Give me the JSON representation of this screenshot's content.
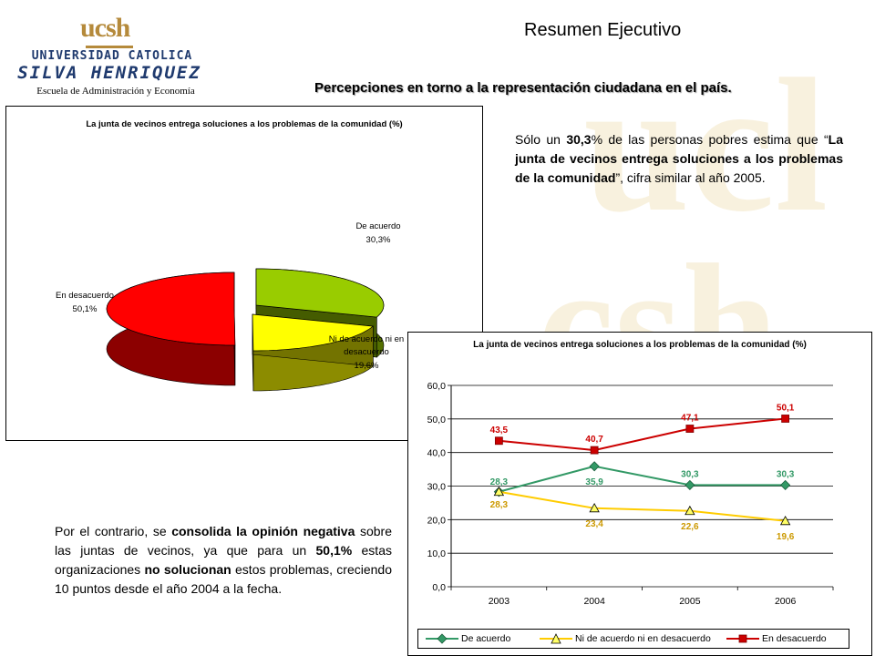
{
  "header": {
    "title": "Resumen Ejecutivo",
    "subtitle": "Percepciones en torno a la representación ciudadana en el país."
  },
  "logo": {
    "mark": "ucsh",
    "line1": "UNIVERSIDAD CATOLICA",
    "line2": "SILVA HENRIQUEZ",
    "line3": "Escuela de Administración y Economía"
  },
  "text_top": {
    "p1": "Sólo un ",
    "b1": "30,3",
    "p2": "% de las personas pobres estima que “",
    "b2": "La junta de vecinos entrega soluciones a los problemas de la comunidad",
    "p3": "”, cifra similar al año 2005."
  },
  "text_bottom": {
    "p1": "Por el contrario, se ",
    "b1": "consolida la opinión negativa",
    "p2": " sobre las juntas de vecinos, ya que para un ",
    "b2": "50,1%",
    "p3": " estas organizaciones ",
    "b3": "no solucionan",
    "p4": " estos problemas, creciendo 10 puntos desde el año 2004 a la fecha."
  },
  "chart_data": [
    {
      "type": "pie",
      "title": "La junta de vecinos entrega soluciones a los problemas de la comunidad (%)",
      "slices": [
        {
          "label": "De acuerdo",
          "value": 30.3,
          "value_label": "30,3%",
          "color": "#99cc00"
        },
        {
          "label": "Ni de acuerdo ni en desacuerdo",
          "value": 19.6,
          "value_label": "19,6%",
          "color": "#ffff00"
        },
        {
          "label": "En desacuerdo",
          "value": 50.1,
          "value_label": "50,1%",
          "color": "#ff0000"
        }
      ]
    },
    {
      "type": "line",
      "title": "La junta de vecinos entrega soluciones a los problemas de la comunidad (%)",
      "categories": [
        "2003",
        "2004",
        "2005",
        "2006"
      ],
      "ylim": [
        0,
        60
      ],
      "yticks": [
        "0,0",
        "10,0",
        "20,0",
        "30,0",
        "40,0",
        "50,0",
        "60,0"
      ],
      "grid": true,
      "legend_position": "bottom",
      "series": [
        {
          "name": "De acuerdo",
          "values": [
            28.3,
            35.9,
            30.3,
            30.3
          ],
          "labels": [
            "28,3",
            "35,9",
            "30,3",
            "30,3"
          ],
          "color": "#339966",
          "marker": "diamond"
        },
        {
          "name": "Ni de acuerdo ni en desacuerdo",
          "values": [
            28.3,
            23.4,
            22.6,
            19.6
          ],
          "labels": [
            "28,3",
            "23,4",
            "22,6",
            "19,6"
          ],
          "color": "#ffcc00",
          "label_color": "#cc9900",
          "marker": "triangle"
        },
        {
          "name": "En desacuerdo",
          "values": [
            43.5,
            40.7,
            47.1,
            50.1
          ],
          "labels": [
            "43,5",
            "40,7",
            "47,1",
            "50,1"
          ],
          "color": "#cc0000",
          "marker": "square"
        }
      ]
    }
  ]
}
